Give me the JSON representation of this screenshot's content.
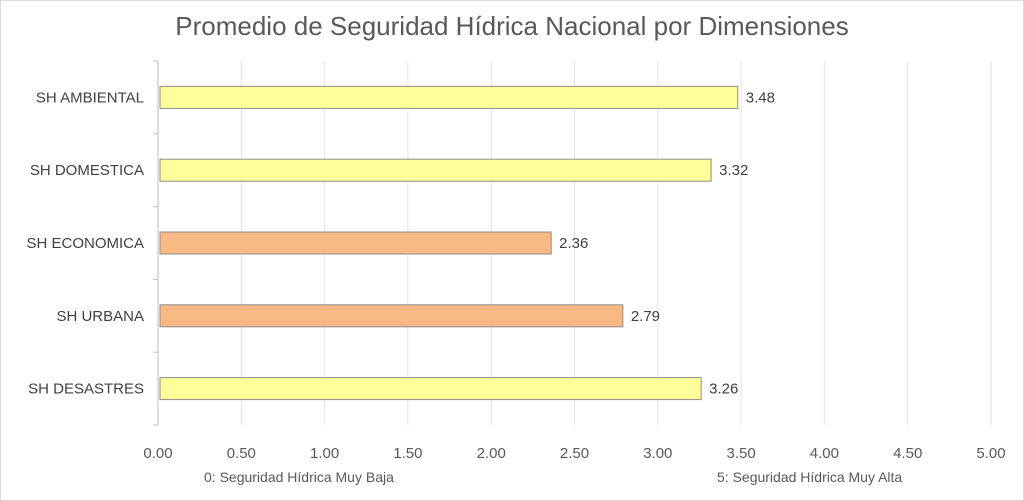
{
  "chart_data": {
    "type": "bar",
    "orientation": "horizontal",
    "title": "Promedio de Seguridad Hídrica Nacional por Dimensiones",
    "categories": [
      "SH AMBIENTAL",
      "SH DOMESTICA",
      "SH ECONOMICA",
      "SH URBANA",
      "SH DESASTRES"
    ],
    "values": [
      3.48,
      3.32,
      2.36,
      2.79,
      3.26
    ],
    "data_labels": [
      "3.48",
      "3.32",
      "2.36",
      "2.79",
      "3.26"
    ],
    "bar_colors": [
      "#ffff99",
      "#ffff99",
      "#f9b984",
      "#f9b984",
      "#ffff99"
    ],
    "xlim": [
      0,
      5
    ],
    "xticks": [
      "0.00",
      "0.50",
      "1.00",
      "1.50",
      "2.00",
      "2.50",
      "3.00",
      "3.50",
      "4.00",
      "4.50",
      "5.00"
    ],
    "grid": true,
    "xlabel_left": "0: Seguridad Hídrica Muy Baja",
    "xlabel_right": "5: Seguridad Hídrica Muy Alta"
  }
}
